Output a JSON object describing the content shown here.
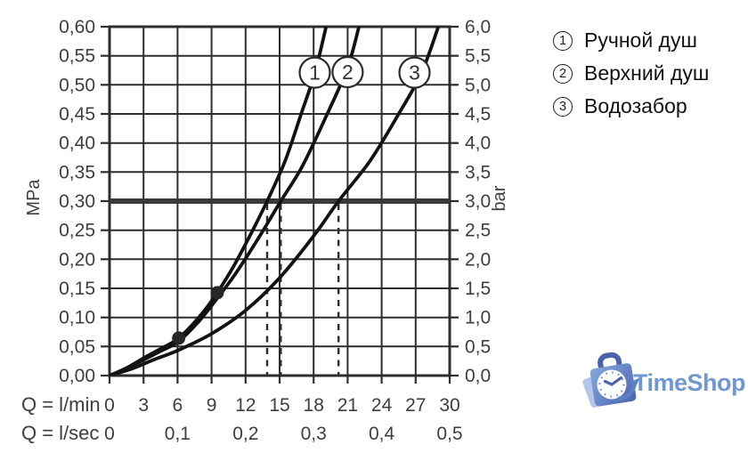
{
  "legend": {
    "items": [
      {
        "num": "1",
        "label": "Ручной душ"
      },
      {
        "num": "2",
        "label": "Верхний душ"
      },
      {
        "num": "3",
        "label": "Водозабор"
      }
    ]
  },
  "watermark": {
    "text": "TimeShop",
    "colors": {
      "text": "#6f98d3",
      "bag_light": "#85a9e1",
      "bag_dark": "#4a63ad",
      "back_shape": "#b3c6ec",
      "swoosh": "#5c80c6",
      "clock_ticks": "#8795ba",
      "clock_face": "#ffffff"
    }
  },
  "chart_data": {
    "type": "line",
    "title": "",
    "x_axis": {
      "primary_label": "Q = l/min",
      "secondary_label": "Q = l/sec",
      "primary_ticks": [
        "0",
        "3",
        "6",
        "9",
        "12",
        "15",
        "18",
        "21",
        "24",
        "27",
        "30"
      ],
      "secondary_ticks": [
        {
          "value": "0",
          "at_lmin": 0
        },
        {
          "value": "0,1",
          "at_lmin": 6
        },
        {
          "value": "0,2",
          "at_lmin": 12
        },
        {
          "value": "0,3",
          "at_lmin": 18
        },
        {
          "value": "0,4",
          "at_lmin": 24
        },
        {
          "value": "0,5",
          "at_lmin": 30
        }
      ],
      "range_lmin": [
        0,
        30
      ],
      "gridline_step_lmin": 3
    },
    "y_axis_left": {
      "unit": "MPa",
      "ticks": [
        "0,60",
        "0,55",
        "0,50",
        "0,45",
        "0,40",
        "0,35",
        "0,30",
        "0,25",
        "0,20",
        "0,15",
        "0,10",
        "0,05",
        "0,00"
      ],
      "range_mpa": [
        0,
        0.6
      ],
      "gridline_step_mpa": 0.05
    },
    "y_axis_right": {
      "unit": "bar",
      "ticks": [
        "6,0",
        "5,5",
        "5,0",
        "4,5",
        "4,0",
        "3,5",
        "3,0",
        "2,5",
        "2,0",
        "1,5",
        "1,0",
        "0,5",
        "0,0"
      ]
    },
    "reference_line": {
      "pressure_mpa": 0.3,
      "pressure_bar": 3.0
    },
    "curves": [
      {
        "number": "1",
        "name": "Ручной душ",
        "flow_at_3bar_lmin": 13.9,
        "badge_at": [
          18.1,
          0.521
        ],
        "points_lmin_mpa": [
          [
            0,
            0
          ],
          [
            1.5,
            0.013
          ],
          [
            3,
            0.03
          ],
          [
            4.5,
            0.046
          ],
          [
            6.1,
            0.0645
          ],
          [
            8,
            0.103
          ],
          [
            9.5,
            0.1425
          ],
          [
            11,
            0.19
          ],
          [
            12.5,
            0.245
          ],
          [
            13.9,
            0.3
          ],
          [
            15.5,
            0.37
          ],
          [
            16.9,
            0.45
          ],
          [
            18.1,
            0.52
          ],
          [
            19.1,
            0.6
          ]
        ]
      },
      {
        "number": "2",
        "name": "Верхний душ",
        "flow_at_3bar_lmin": 15.1,
        "badge_at": [
          21.0,
          0.522
        ],
        "points_lmin_mpa": [
          [
            0,
            0
          ],
          [
            1.5,
            0.012
          ],
          [
            3,
            0.027
          ],
          [
            4.5,
            0.042
          ],
          [
            6.1,
            0.059
          ],
          [
            8,
            0.096
          ],
          [
            9.5,
            0.133
          ],
          [
            11,
            0.172
          ],
          [
            13,
            0.232
          ],
          [
            15.1,
            0.3
          ],
          [
            17,
            0.36
          ],
          [
            19.2,
            0.45
          ],
          [
            21,
            0.53
          ],
          [
            22,
            0.6
          ]
        ]
      },
      {
        "number": "3",
        "name": "Водозабор",
        "flow_at_3bar_lmin": 20.2,
        "badge_at": [
          26.9,
          0.521
        ],
        "points_lmin_mpa": [
          [
            0,
            0
          ],
          [
            2,
            0.012
          ],
          [
            4,
            0.028
          ],
          [
            6,
            0.043
          ],
          [
            9,
            0.072
          ],
          [
            12,
            0.112
          ],
          [
            15,
            0.168
          ],
          [
            18,
            0.24
          ],
          [
            20.2,
            0.3
          ],
          [
            23,
            0.37
          ],
          [
            25.5,
            0.45
          ],
          [
            27.5,
            0.52
          ],
          [
            29,
            0.6
          ]
        ]
      }
    ],
    "point_markers_lmin_mpa": [
      [
        6.1,
        0.0645
      ],
      [
        9.5,
        0.1425
      ]
    ],
    "dashed_guides_lmin": [
      13.9,
      15.1,
      20.2
    ],
    "legend_position": "right",
    "grid": true,
    "colors": {
      "grid": "#2d2d2d",
      "curve": "#121212",
      "label": "#3e3e3e",
      "reference_line": "#3a3a3a",
      "marker": "#272727"
    }
  }
}
